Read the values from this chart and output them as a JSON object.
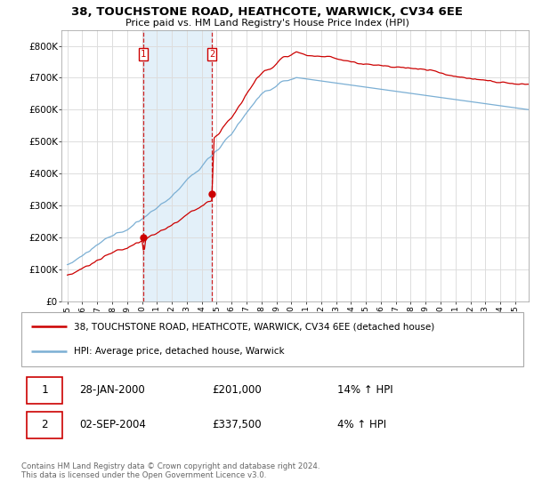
{
  "title_line1": "38, TOUCHSTONE ROAD, HEATHCOTE, WARWICK, CV34 6EE",
  "title_line2": "Price paid vs. HM Land Registry's House Price Index (HPI)",
  "legend_label1": "38, TOUCHSTONE ROAD, HEATHCOTE, WARWICK, CV34 6EE (detached house)",
  "legend_label2": "HPI: Average price, detached house, Warwick",
  "transaction1_date": "28-JAN-2000",
  "transaction1_price": "£201,000",
  "transaction1_hpi": "14% ↑ HPI",
  "transaction2_date": "02-SEP-2004",
  "transaction2_price": "£337,500",
  "transaction2_hpi": "4% ↑ HPI",
  "footer": "Contains HM Land Registry data © Crown copyright and database right 2024.\nThis data is licensed under the Open Government Licence v3.0.",
  "line1_color": "#cc0000",
  "line2_color": "#7bafd4",
  "vline_color": "#cc0000",
  "span_color": "#d8eaf7",
  "background_color": "#ffffff",
  "grid_color": "#dddddd",
  "ytick_labels": [
    "£0",
    "£100K",
    "£200K",
    "£300K",
    "£400K",
    "£500K",
    "£600K",
    "£700K",
    "£800K"
  ],
  "yticks": [
    0,
    100000,
    200000,
    300000,
    400000,
    500000,
    600000,
    700000,
    800000
  ],
  "t1_year": 2000.07,
  "t2_year": 2004.67,
  "t1_price": 201000,
  "t2_price": 337500
}
